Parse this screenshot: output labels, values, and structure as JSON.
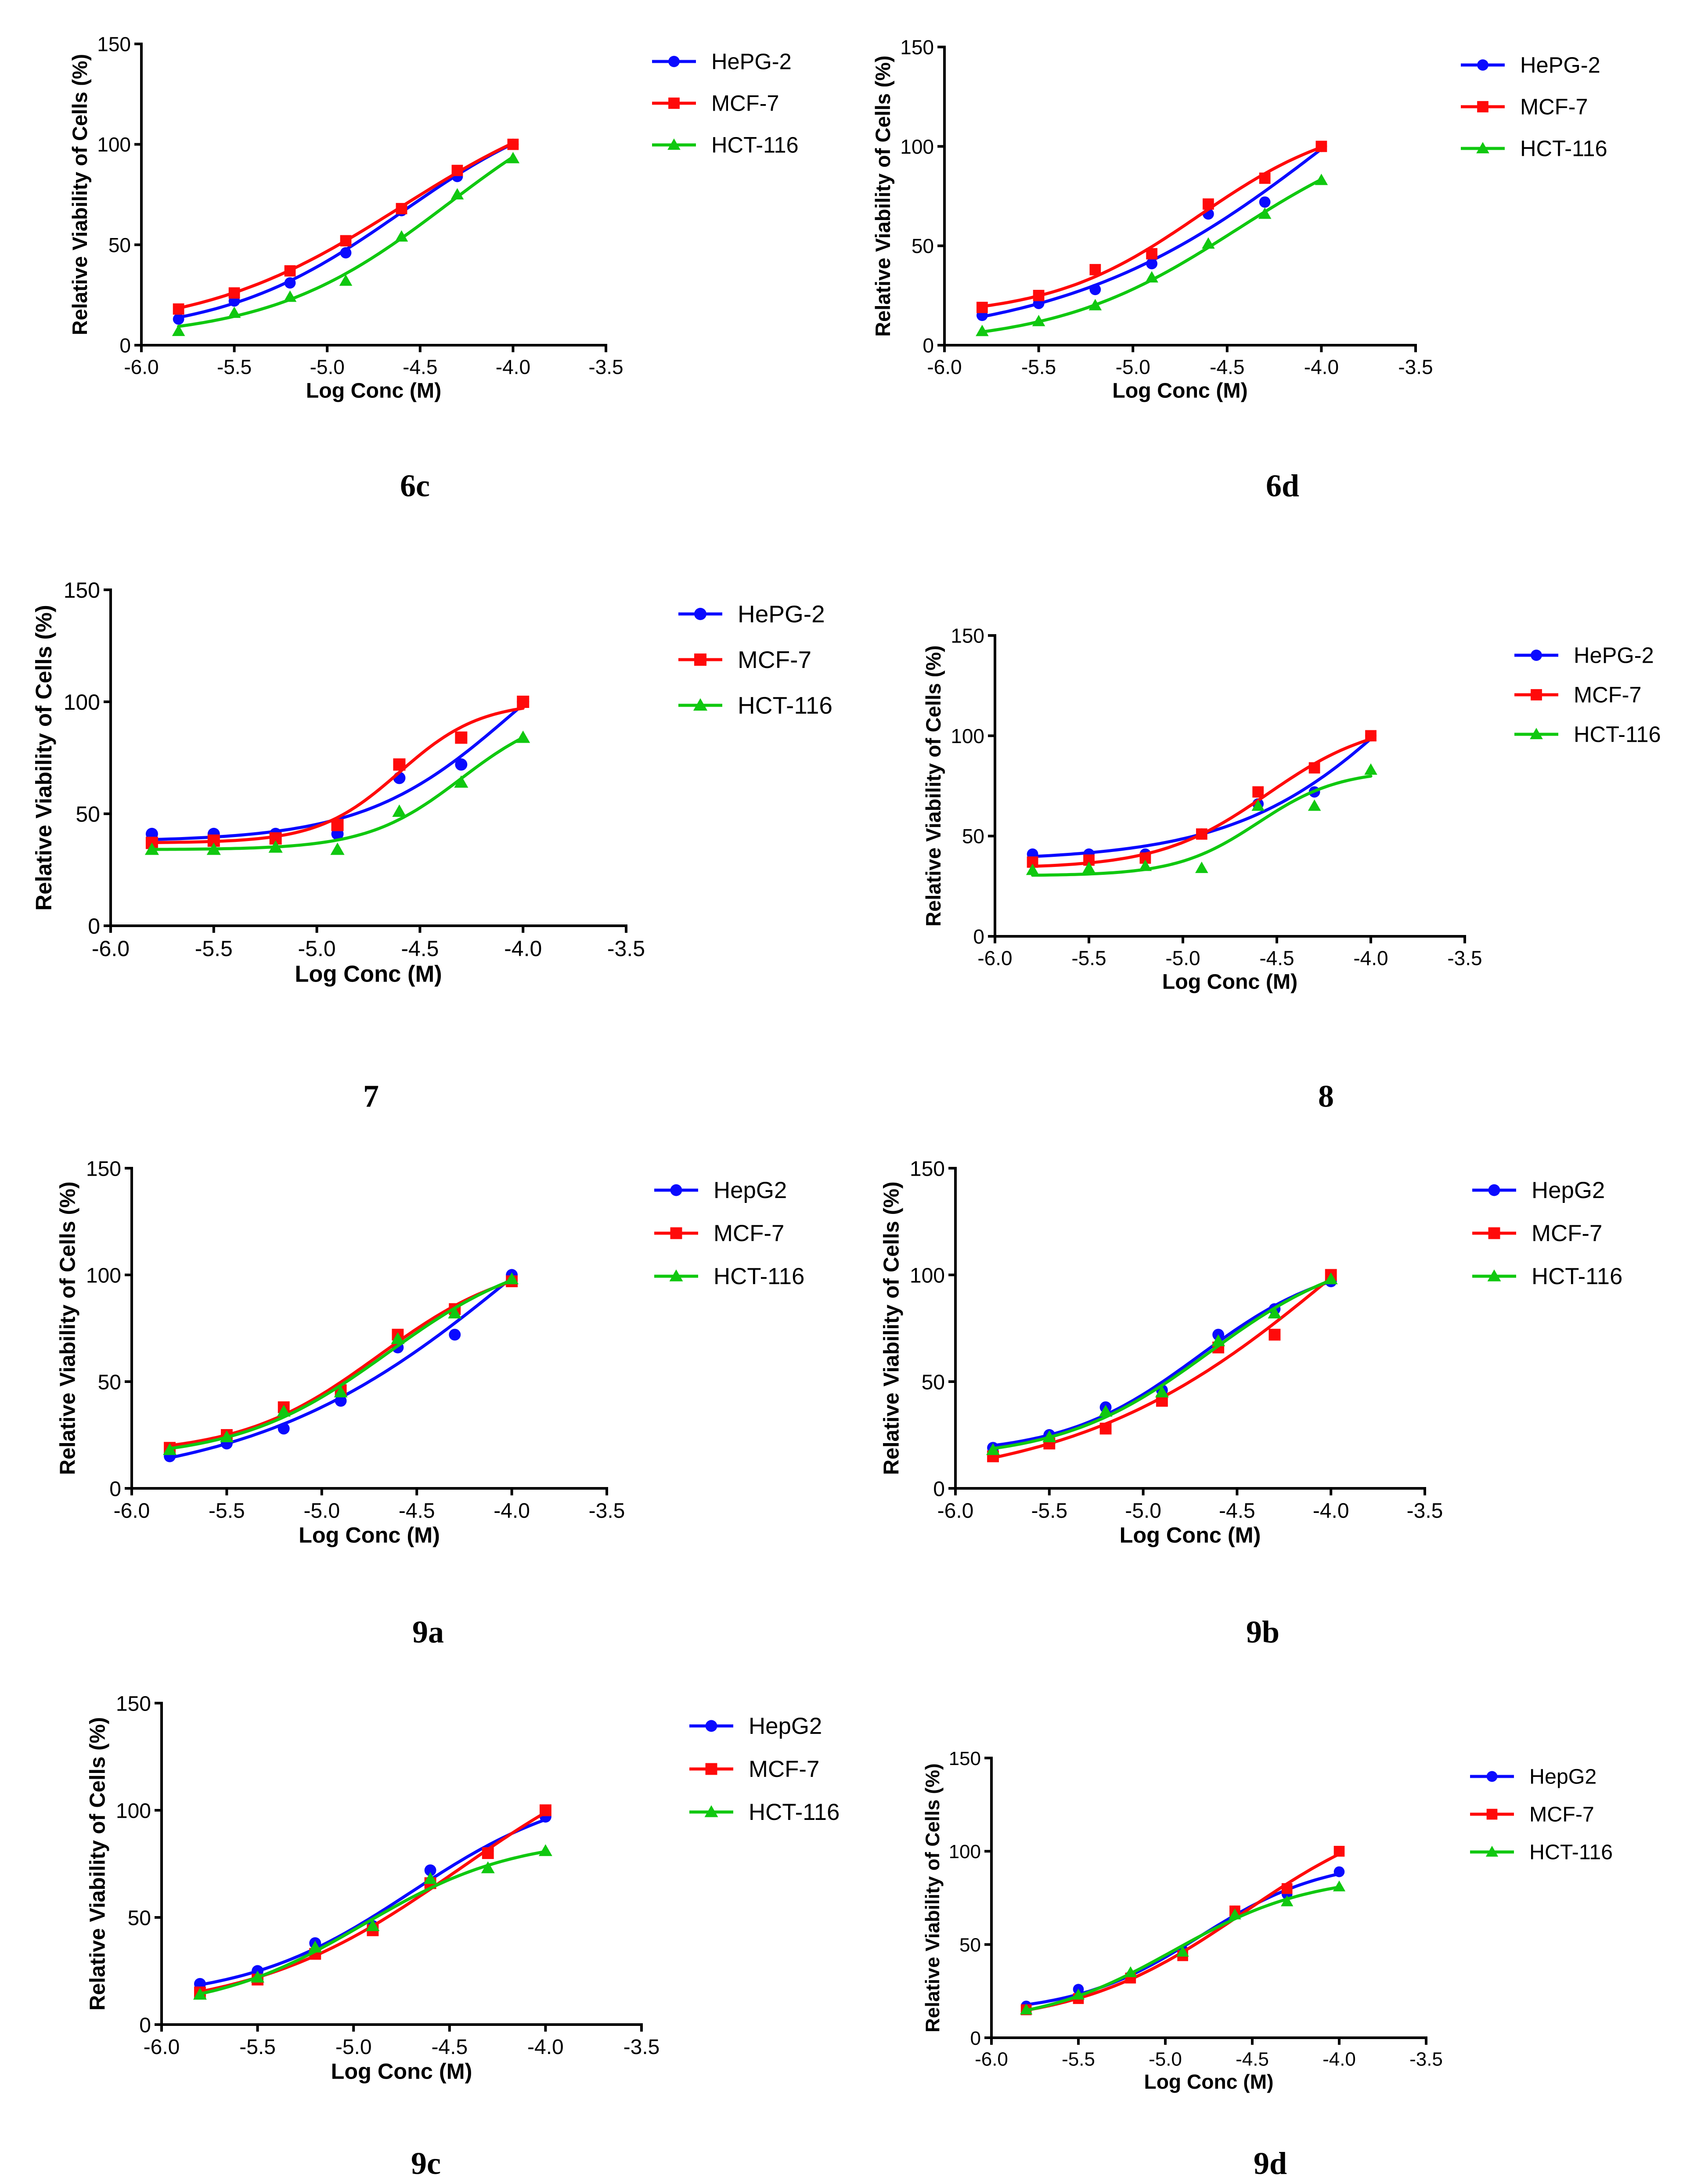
{
  "colors": {
    "blue": "#0a0aff",
    "red": "#ff0a0a",
    "green": "#10c810"
  },
  "chart_data": [
    {
      "label": "6c",
      "type": "line",
      "xlabel": "Log Conc (M)",
      "ylabel": "Relative Viability of Cells (%)",
      "xlim": [
        -6.0,
        -3.5
      ],
      "ylim": [
        0,
        150
      ],
      "xticks": [
        "-6.0",
        "-5.5",
        "-5.0",
        "-4.5",
        "-4.0",
        "-3.5"
      ],
      "yticks": [
        "0",
        "50",
        "100",
        "150"
      ],
      "x": [
        -5.8,
        -5.5,
        -5.2,
        -4.9,
        -4.6,
        -4.3,
        -4.0
      ],
      "legend": [
        "HePG-2",
        "MCF-7",
        "HCT-116"
      ],
      "series": [
        {
          "name": "HePG-2",
          "marker": "circle",
          "values": [
            13,
            22,
            31,
            46,
            67,
            84,
            100
          ]
        },
        {
          "name": "MCF-7",
          "marker": "square",
          "values": [
            18,
            26,
            37,
            52,
            68,
            87,
            100
          ]
        },
        {
          "name": "HCT-116",
          "marker": "triangle",
          "values": [
            7,
            16,
            24,
            32,
            54,
            75,
            93
          ]
        }
      ]
    },
    {
      "label": "6d",
      "type": "line",
      "xlabel": "Log Conc (M)",
      "ylabel": "Relative Viability of Cells (%)",
      "xlim": [
        -6.0,
        -3.5
      ],
      "ylim": [
        0,
        150
      ],
      "xticks": [
        "-6.0",
        "-5.5",
        "-5.0",
        "-4.5",
        "-4.0",
        "-3.5"
      ],
      "yticks": [
        "0",
        "50",
        "100",
        "150"
      ],
      "x": [
        -5.8,
        -5.5,
        -5.2,
        -4.9,
        -4.6,
        -4.3,
        -4.0
      ],
      "legend": [
        "HePG-2",
        "MCF-7",
        "HCT-116"
      ],
      "series": [
        {
          "name": "HePG-2",
          "marker": "circle",
          "values": [
            15,
            21,
            28,
            41,
            66,
            72,
            100
          ]
        },
        {
          "name": "MCF-7",
          "marker": "square",
          "values": [
            19,
            25,
            38,
            46,
            71,
            84,
            100
          ]
        },
        {
          "name": "HCT-116",
          "marker": "triangle",
          "values": [
            7,
            12,
            20,
            34,
            51,
            66,
            83
          ]
        }
      ]
    },
    {
      "label": "7",
      "type": "line",
      "xlabel": "Log Conc (M)",
      "ylabel": "Relative Viability of Cells (%)",
      "xlim": [
        -6.0,
        -3.5
      ],
      "ylim": [
        0,
        150
      ],
      "xticks": [
        "-6.0",
        "-5.5",
        "-5.0",
        "-4.5",
        "-4.0",
        "-3.5"
      ],
      "yticks": [
        "0",
        "50",
        "100",
        "150"
      ],
      "x": [
        -5.8,
        -5.5,
        -5.2,
        -4.9,
        -4.6,
        -4.3,
        -4.0
      ],
      "legend": [
        "HePG-2",
        "MCF-7",
        "HCT-116"
      ],
      "series": [
        {
          "name": "HePG-2",
          "marker": "circle",
          "values": [
            41,
            41,
            41,
            41,
            66,
            72,
            100
          ]
        },
        {
          "name": "MCF-7",
          "marker": "square",
          "values": [
            37,
            38,
            39,
            45,
            72,
            84,
            100
          ]
        },
        {
          "name": "HCT-116",
          "marker": "triangle",
          "values": [
            34,
            34,
            35,
            34,
            51,
            64,
            84
          ]
        }
      ]
    },
    {
      "label": "8",
      "type": "line",
      "xlabel": "Log Conc (M)",
      "ylabel": "Relative Viability of Cells (%)",
      "xlim": [
        -6.0,
        -3.5
      ],
      "ylim": [
        0,
        150
      ],
      "xticks": [
        "-6.0",
        "-5.5",
        "-5.0",
        "-4.5",
        "-4.0",
        "-3.5"
      ],
      "yticks": [
        "0",
        "50",
        "100",
        "150"
      ],
      "x": [
        -5.8,
        -5.5,
        -5.2,
        -4.9,
        -4.6,
        -4.3,
        -4.0
      ],
      "legend": [
        "HePG-2",
        "MCF-7",
        "HCT-116"
      ],
      "series": [
        {
          "name": "HePG-2",
          "marker": "circle",
          "values": [
            41,
            41,
            41,
            51,
            66,
            72,
            100
          ]
        },
        {
          "name": "MCF-7",
          "marker": "square",
          "values": [
            37,
            38,
            39,
            51,
            72,
            84,
            100
          ]
        },
        {
          "name": "HCT-116",
          "marker": "triangle",
          "values": [
            33,
            34,
            35,
            34,
            65,
            65,
            83
          ]
        }
      ]
    },
    {
      "label": "9a",
      "type": "line",
      "xlabel": "Log Conc (M)",
      "ylabel": "Relative Viability of Cells (%)",
      "xlim": [
        -6.0,
        -3.5
      ],
      "ylim": [
        0,
        150
      ],
      "xticks": [
        "-6.0",
        "-5.5",
        "-5.0",
        "-4.5",
        "-4.0",
        "-3.5"
      ],
      "yticks": [
        "0",
        "50",
        "100",
        "150"
      ],
      "x": [
        -5.8,
        -5.5,
        -5.2,
        -4.9,
        -4.6,
        -4.3,
        -4.0
      ],
      "legend": [
        "HepG2",
        "MCF-7",
        "HCT-116"
      ],
      "series": [
        {
          "name": "HepG2",
          "marker": "circle",
          "values": [
            15,
            21,
            28,
            41,
            66,
            72,
            100
          ]
        },
        {
          "name": "MCF-7",
          "marker": "square",
          "values": [
            19,
            25,
            38,
            46,
            72,
            84,
            97
          ]
        },
        {
          "name": "HCT-116",
          "marker": "triangle",
          "values": [
            18,
            24,
            36,
            45,
            70,
            82,
            98
          ]
        }
      ]
    },
    {
      "label": "9b",
      "type": "line",
      "xlabel": "Log Conc (M)",
      "ylabel": "Relative Viability of Cells (%)",
      "xlim": [
        -6.0,
        -3.5
      ],
      "ylim": [
        0,
        150
      ],
      "xticks": [
        "-6.0",
        "-5.5",
        "-5.0",
        "-4.5",
        "-4.0",
        "-3.5"
      ],
      "yticks": [
        "0",
        "50",
        "100",
        "150"
      ],
      "x": [
        -5.8,
        -5.5,
        -5.2,
        -4.9,
        -4.6,
        -4.3,
        -4.0
      ],
      "legend": [
        "HepG2",
        "MCF-7",
        "HCT-116"
      ],
      "series": [
        {
          "name": "HepG2",
          "marker": "circle",
          "values": [
            19,
            25,
            38,
            46,
            72,
            84,
            97
          ]
        },
        {
          "name": "MCF-7",
          "marker": "square",
          "values": [
            15,
            21,
            28,
            41,
            66,
            72,
            100
          ]
        },
        {
          "name": "HCT-116",
          "marker": "triangle",
          "values": [
            18,
            24,
            36,
            45,
            69,
            82,
            98
          ]
        }
      ]
    },
    {
      "label": "9c",
      "type": "line",
      "xlabel": "Log Conc (M)",
      "ylabel": "Relative Viability of Cells (%)",
      "xlim": [
        -6.0,
        -3.5
      ],
      "ylim": [
        0,
        150
      ],
      "xticks": [
        "-6.0",
        "-5.5",
        "-5.0",
        "-4.5",
        "-4.0",
        "-3.5"
      ],
      "yticks": [
        "0",
        "50",
        "100",
        "150"
      ],
      "x": [
        -5.8,
        -5.5,
        -5.2,
        -4.9,
        -4.6,
        -4.3,
        -4.0
      ],
      "legend": [
        "HepG2",
        "MCF-7",
        "HCT-116"
      ],
      "series": [
        {
          "name": "HepG2",
          "marker": "circle",
          "values": [
            19,
            25,
            38,
            46,
            72,
            81,
            97
          ]
        },
        {
          "name": "MCF-7",
          "marker": "square",
          "values": [
            15,
            21,
            33,
            44,
            66,
            80,
            100
          ]
        },
        {
          "name": "HCT-116",
          "marker": "triangle",
          "values": [
            14,
            22,
            36,
            46,
            68,
            73,
            81
          ]
        }
      ]
    },
    {
      "label": "9d",
      "type": "line",
      "xlabel": "Log Conc (M)",
      "ylabel": "Relative Viability of Cells (%)",
      "xlim": [
        -6.0,
        -3.5
      ],
      "ylim": [
        0,
        150
      ],
      "xticks": [
        "-6.0",
        "-5.5",
        "-5.0",
        "-4.5",
        "-4.0",
        "-3.5"
      ],
      "yticks": [
        "0",
        "50",
        "100",
        "150"
      ],
      "x": [
        -5.8,
        -5.5,
        -5.2,
        -4.9,
        -4.6,
        -4.3,
        -4.0
      ],
      "legend": [
        "HepG2",
        "MCF-7",
        "HCT-116"
      ],
      "series": [
        {
          "name": "HepG2",
          "marker": "circle",
          "values": [
            17,
            26,
            33,
            47,
            68,
            77,
            89
          ]
        },
        {
          "name": "MCF-7",
          "marker": "square",
          "values": [
            15,
            21,
            32,
            44,
            68,
            80,
            100
          ]
        },
        {
          "name": "HCT-116",
          "marker": "triangle",
          "values": [
            15,
            23,
            35,
            46,
            66,
            73,
            81
          ]
        }
      ]
    }
  ]
}
